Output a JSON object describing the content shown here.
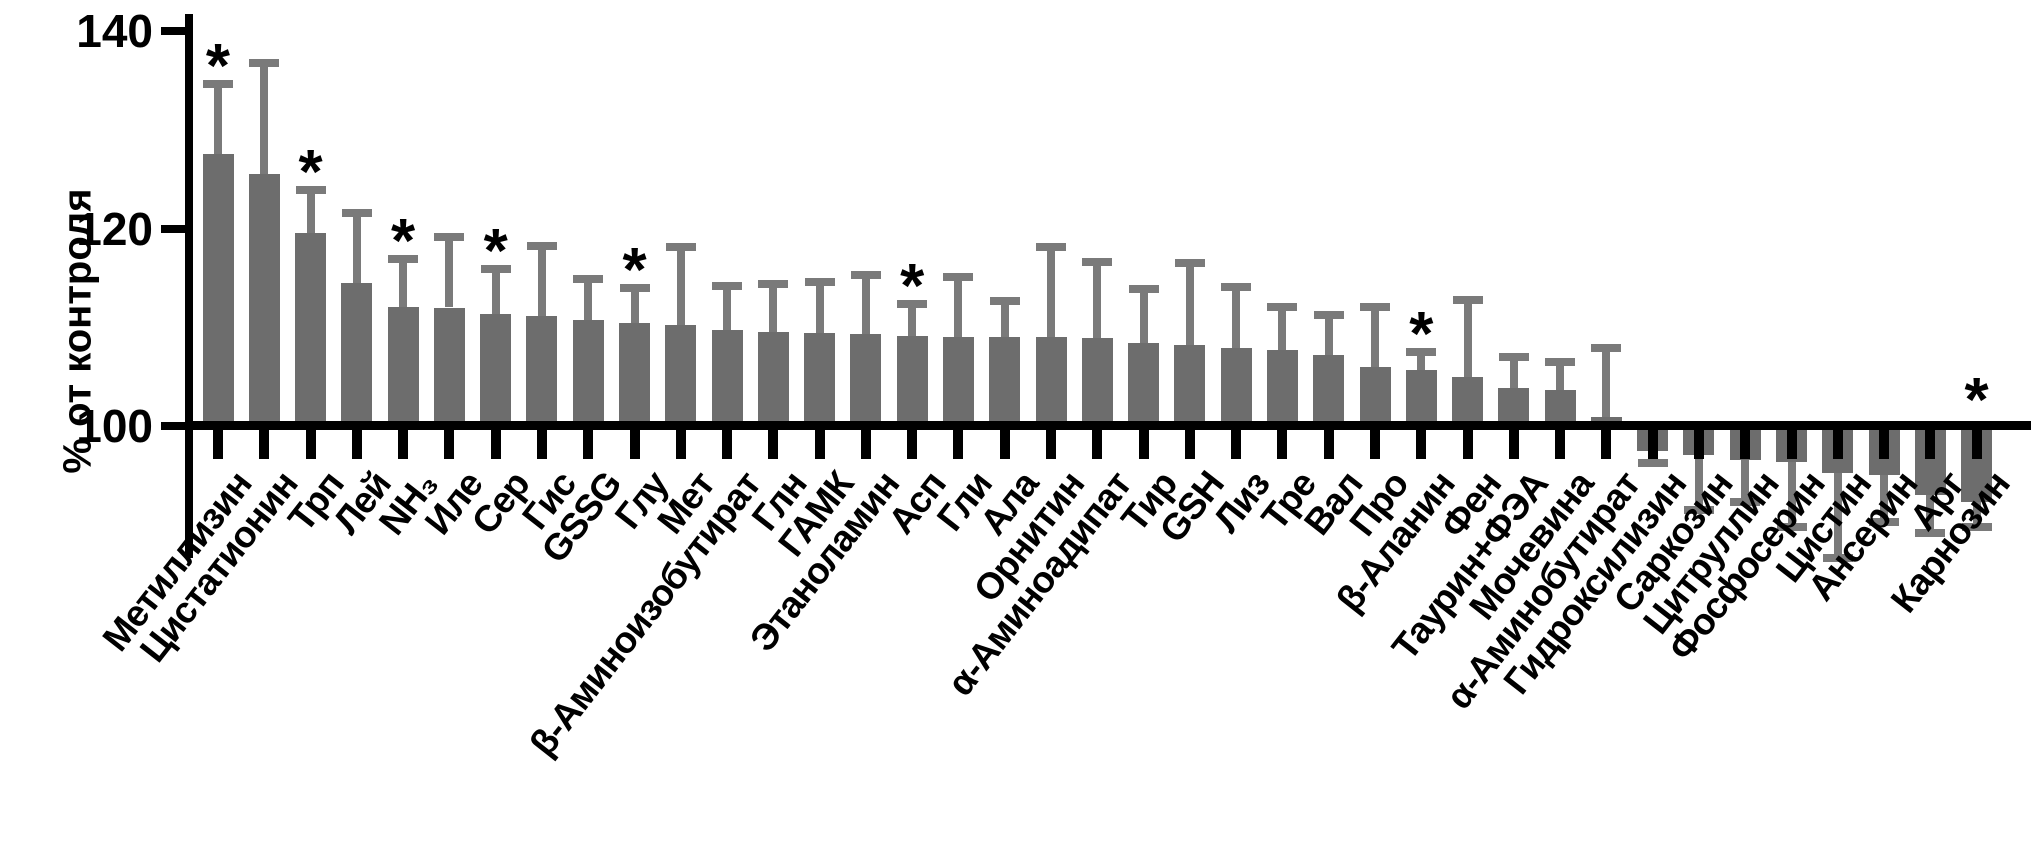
{
  "chart_data": {
    "type": "bar",
    "title": "",
    "xlabel": "",
    "ylabel": "% от контроля",
    "y_ticks": [
      100,
      120,
      140
    ],
    "ylim": [
      86,
      140
    ],
    "baseline": 100,
    "grid": false,
    "legend": "none",
    "significance_marker": "*",
    "colors": {
      "bar": "#6d6d6d",
      "error_bar": "#7a7a7a",
      "axis": "#000000",
      "text": "#000000",
      "background": "#ffffff"
    },
    "series": [
      {
        "label": "Метиллизин",
        "value": 127.5,
        "error": 7.1,
        "significant": true
      },
      {
        "label": "Цистатионин",
        "value": 125.5,
        "error": 11.3,
        "significant": false
      },
      {
        "label": "Трп",
        "value": 119.5,
        "error": 4.4,
        "significant": true
      },
      {
        "label": "Лей",
        "value": 114.5,
        "error": 7.1,
        "significant": false
      },
      {
        "label": "NH₃",
        "value": 112.1,
        "error": 4.8,
        "significant": true
      },
      {
        "label": "Иле",
        "value": 112.0,
        "error": 7.1,
        "significant": false
      },
      {
        "label": "Сер",
        "value": 111.3,
        "error": 4.6,
        "significant": true
      },
      {
        "label": "Гис",
        "value": 111.1,
        "error": 7.1,
        "significant": false
      },
      {
        "label": "GSSG",
        "value": 110.7,
        "error": 4.2,
        "significant": false
      },
      {
        "label": "Глу",
        "value": 110.4,
        "error": 3.6,
        "significant": true
      },
      {
        "label": "Мет",
        "value": 110.2,
        "error": 7.9,
        "significant": false
      },
      {
        "label": "β-Аминоизобутират",
        "value": 109.7,
        "error": 4.5,
        "significant": false
      },
      {
        "label": "Глн",
        "value": 109.5,
        "error": 4.9,
        "significant": false
      },
      {
        "label": "ГАМК",
        "value": 109.4,
        "error": 5.2,
        "significant": false
      },
      {
        "label": "Этаноламин",
        "value": 109.3,
        "error": 6.0,
        "significant": false
      },
      {
        "label": "Асп",
        "value": 109.1,
        "error": 3.3,
        "significant": true
      },
      {
        "label": "Гли",
        "value": 109.0,
        "error": 6.1,
        "significant": false
      },
      {
        "label": "Ала",
        "value": 109.0,
        "error": 3.7,
        "significant": false
      },
      {
        "label": "Орнитин",
        "value": 109.0,
        "error": 9.1,
        "significant": false
      },
      {
        "label": "α-Аминоадипат",
        "value": 108.9,
        "error": 7.7,
        "significant": false
      },
      {
        "label": "Тир",
        "value": 108.4,
        "error": 5.5,
        "significant": false
      },
      {
        "label": "GSH",
        "value": 108.2,
        "error": 8.3,
        "significant": false
      },
      {
        "label": "Лиз",
        "value": 107.9,
        "error": 6.2,
        "significant": false
      },
      {
        "label": "Тре",
        "value": 107.7,
        "error": 4.4,
        "significant": false
      },
      {
        "label": "Вал",
        "value": 107.2,
        "error": 4.0,
        "significant": false
      },
      {
        "label": "Про",
        "value": 106.0,
        "error": 6.1,
        "significant": false
      },
      {
        "label": "β-Аланин",
        "value": 105.7,
        "error": 1.8,
        "significant": true
      },
      {
        "label": "Фен",
        "value": 105.0,
        "error": 7.8,
        "significant": false
      },
      {
        "label": "Таурин+ФЭА",
        "value": 103.8,
        "error": 3.2,
        "significant": false
      },
      {
        "label": "Мочевина",
        "value": 103.6,
        "error": 2.9,
        "significant": false
      },
      {
        "label": "α-Аминобутират",
        "value": 100.9,
        "error": 7.0,
        "significant": false
      },
      {
        "label": "Гидроксилизин",
        "value": 97.5,
        "error": 1.2,
        "significant": false
      },
      {
        "label": "Саркозин",
        "value": 97.1,
        "error": 5.6,
        "significant": false
      },
      {
        "label": "Цитруллин",
        "value": 96.6,
        "error": 4.3,
        "significant": false
      },
      {
        "label": "Фосфосерин",
        "value": 96.4,
        "error": 6.6,
        "significant": false
      },
      {
        "label": "Цистин",
        "value": 95.2,
        "error": 8.6,
        "significant": false
      },
      {
        "label": "Ансерин",
        "value": 95.0,
        "error": 4.7,
        "significant": false
      },
      {
        "label": "Арг",
        "value": 93.0,
        "error": 3.8,
        "significant": false
      },
      {
        "label": "Карнозин",
        "value": 92.3,
        "error": 2.5,
        "significant": true
      }
    ]
  }
}
